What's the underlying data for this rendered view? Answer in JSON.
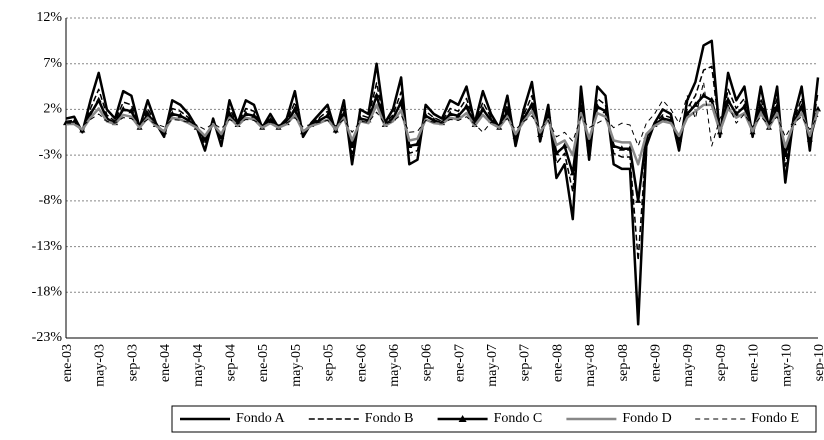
{
  "chart_data": {
    "type": "line",
    "categories": [
      "ene-03",
      null,
      null,
      null,
      "may-03",
      null,
      null,
      null,
      "sep-03",
      null,
      null,
      null,
      "ene-04",
      null,
      null,
      null,
      "may-04",
      null,
      null,
      null,
      "sep-04",
      null,
      null,
      null,
      "ene-05",
      null,
      null,
      null,
      "may-05",
      null,
      null,
      null,
      "sep-05",
      null,
      null,
      null,
      "ene-06",
      null,
      null,
      null,
      "may-06",
      null,
      null,
      null,
      "sep-06",
      null,
      null,
      null,
      "ene-07",
      null,
      null,
      null,
      "may-07",
      null,
      null,
      null,
      "sep-07",
      null,
      null,
      null,
      "ene-08",
      null,
      null,
      null,
      "may-08",
      null,
      null,
      null,
      "sep-08",
      null,
      null,
      null,
      "ene-09",
      null,
      null,
      null,
      "may-09",
      null,
      null,
      null,
      "sep-09",
      null,
      null,
      null,
      "ene-10",
      null,
      null,
      null,
      "may-10",
      null,
      null,
      null,
      "sep-10"
    ],
    "ylim": [
      -23,
      12
    ],
    "yticks": [
      {
        "value": -23,
        "label": "-23%"
      },
      {
        "value": -18,
        "label": "-18%"
      },
      {
        "value": -13,
        "label": "-13%"
      },
      {
        "value": -8,
        "label": "-8%"
      },
      {
        "value": -3,
        "label": "-3%"
      },
      {
        "value": 2,
        "label": "2%"
      },
      {
        "value": 7,
        "label": "7%"
      },
      {
        "value": 12,
        "label": "12%"
      }
    ],
    "grid": true,
    "legend": "bottom",
    "series": [
      {
        "name": "Fondo A",
        "color": "#000000",
        "linestyle": "solid",
        "values": [
          1,
          1.2,
          -0.5,
          3,
          6,
          2,
          1,
          4,
          3.5,
          0,
          3,
          0.5,
          -1,
          3,
          2.5,
          1.5,
          0,
          -2.5,
          1,
          -2,
          3,
          0.5,
          3,
          2.5,
          0,
          1.5,
          0,
          1,
          4,
          -1,
          0.5,
          1.5,
          2.5,
          -0.5,
          3,
          -4,
          2,
          1.5,
          7,
          0.5,
          2,
          5.5,
          -4,
          -3.5,
          2.5,
          1.5,
          1,
          3,
          2.5,
          4.5,
          0.5,
          4,
          1.5,
          0,
          3.5,
          -2,
          2,
          5,
          -1.5,
          2.5,
          -5.5,
          -4,
          -10,
          4.5,
          -3.5,
          4.5,
          3.5,
          -4,
          -4.5,
          -4.5,
          -21.5,
          -2,
          0.5,
          2,
          1.5,
          -2.5,
          3,
          5,
          9,
          9.5,
          -1,
          6,
          3,
          4.5,
          -1,
          4.5,
          0,
          4.5,
          -6,
          1,
          4.5,
          -2.5,
          5.5
        ]
      },
      {
        "name": "Fondo B",
        "color": "#000000",
        "linestyle": "dashed",
        "values": [
          0.7,
          0.8,
          -0.4,
          2.1,
          4.2,
          1.4,
          0.7,
          2.8,
          2.5,
          0,
          2.1,
          0.4,
          -0.7,
          2.1,
          1.8,
          1.1,
          0,
          -1.8,
          0.7,
          -1.4,
          2.1,
          0.4,
          2.1,
          1.8,
          0,
          1.1,
          0,
          0.7,
          2.8,
          -0.7,
          0.4,
          1.1,
          1.8,
          -0.4,
          2.1,
          -2.8,
          1.4,
          1.1,
          4.9,
          0.4,
          1.4,
          3.9,
          -2.8,
          -2.5,
          1.8,
          1.1,
          0.7,
          2.1,
          1.8,
          3.2,
          0.4,
          2.8,
          1.1,
          0,
          2.5,
          -1.4,
          1.4,
          3.5,
          -1.1,
          1.8,
          -3.9,
          -2.8,
          -7,
          3.2,
          -2.5,
          3.2,
          2.5,
          -2.8,
          -3.2,
          -3.2,
          -14.5,
          -1.4,
          0.4,
          1.4,
          1.1,
          -1.8,
          2.1,
          3.5,
          6.3,
          6.7,
          -0.7,
          4.2,
          2.1,
          3.2,
          -0.7,
          3.2,
          0,
          3.2,
          -4.2,
          0.7,
          3.2,
          -1.8,
          3.9
        ]
      },
      {
        "name": "Fondo C",
        "color": "#000000",
        "linestyle": "solid",
        "marker": "triangle",
        "values": [
          0.5,
          0.6,
          -0.3,
          1.5,
          3,
          1,
          0.5,
          2,
          1.8,
          0,
          1.5,
          0.3,
          -0.5,
          1.5,
          1.3,
          0.8,
          0,
          -1.3,
          0.5,
          -1,
          1.5,
          0.3,
          1.5,
          1.3,
          0,
          0.8,
          0,
          0.5,
          2,
          -0.5,
          0.3,
          0.8,
          1.3,
          -0.3,
          1.5,
          -2,
          1,
          0.8,
          3.5,
          0.3,
          1,
          2.8,
          -2,
          -1.8,
          1.3,
          0.8,
          0.5,
          1.5,
          1.3,
          2.3,
          0.3,
          2,
          0.8,
          0,
          1.8,
          -1,
          1,
          2.5,
          -0.8,
          1.3,
          -2.8,
          -2,
          -5,
          2.3,
          -1.8,
          2.3,
          1.8,
          -2,
          -2.3,
          -2.3,
          -8,
          -1,
          0.3,
          1,
          0.8,
          -1.3,
          1.5,
          2.5,
          3.5,
          3,
          -0.5,
          3,
          1.5,
          2.3,
          -0.5,
          2.3,
          0,
          2.3,
          -3,
          0.5,
          2.3,
          -1.3,
          2
        ]
      },
      {
        "name": "Fondo D",
        "color": "#888888",
        "linestyle": "solid",
        "values": [
          0.4,
          0.4,
          -0.2,
          1.1,
          2.1,
          0.7,
          0.4,
          1.4,
          1.2,
          0,
          1.1,
          0.2,
          -0.4,
          1.1,
          0.9,
          0.5,
          0,
          -0.9,
          0.4,
          -0.7,
          1.1,
          0.2,
          1.1,
          0.9,
          0,
          0.5,
          0,
          0.4,
          1.4,
          -0.4,
          0.2,
          0.5,
          0.9,
          -0.2,
          1.1,
          -1.4,
          0.7,
          0.5,
          2.5,
          0.2,
          0.7,
          1.9,
          -1.4,
          -1.2,
          0.9,
          0.5,
          0.4,
          1.1,
          0.9,
          1.6,
          0.2,
          1.4,
          0.5,
          0,
          1.2,
          -0.7,
          0.7,
          1.8,
          -0.5,
          0.9,
          -1.9,
          -1.4,
          -3,
          1.6,
          -1.2,
          1.6,
          1.2,
          -1.4,
          -1.6,
          -1.6,
          -4,
          -0.7,
          0.2,
          0.7,
          0.5,
          -0.9,
          1.1,
          1.8,
          2.5,
          2.5,
          -0.4,
          2.1,
          1.1,
          1.6,
          -0.4,
          1.6,
          0,
          1.6,
          -2.1,
          0.4,
          1.6,
          -0.9,
          1.9
        ]
      },
      {
        "name": "Fondo E",
        "color": "#000000",
        "linestyle": "lightdash",
        "values": [
          0.5,
          0.5,
          0.2,
          0.9,
          1.5,
          0.7,
          0.5,
          1.1,
          1,
          0.3,
          0.9,
          0.4,
          0.1,
          0.9,
          0.8,
          0.6,
          0.3,
          -0.2,
          0.5,
          -0.1,
          0.9,
          0.4,
          0.9,
          0.8,
          0.3,
          0.6,
          0.3,
          0.5,
          1.1,
          0.1,
          0.4,
          0.6,
          0.8,
          0.2,
          0.9,
          -0.5,
          0.7,
          0.6,
          1.7,
          0.4,
          0.7,
          1.4,
          -0.5,
          -0.4,
          0.8,
          0.6,
          0.5,
          0.9,
          0.8,
          1.2,
          0.4,
          -0.5,
          0.6,
          0.3,
          1,
          -0.2,
          0.7,
          1.3,
          -0.1,
          0.8,
          -1,
          -0.5,
          -1.5,
          1.2,
          0,
          0.5,
          1,
          0,
          0.5,
          0.3,
          -2,
          0.5,
          1.5,
          3,
          2,
          0.5,
          3.5,
          1,
          5,
          -2,
          1,
          2.5,
          0.5,
          1.5,
          0.1,
          1.2,
          0.3,
          1.2,
          -1,
          0.5,
          1.2,
          -0.2,
          1.3
        ]
      }
    ]
  }
}
